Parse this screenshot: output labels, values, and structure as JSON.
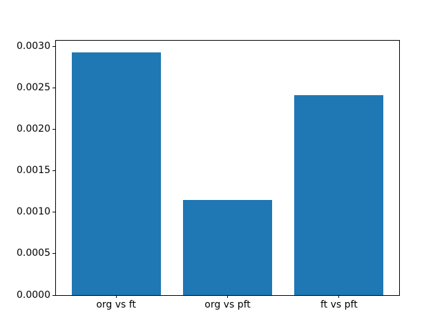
{
  "chart_data": {
    "type": "bar",
    "title": "",
    "xlabel": "",
    "ylabel": "",
    "categories": [
      "org vs ft",
      "org vs pft",
      "ft vs pft"
    ],
    "values": [
      0.00293,
      0.00115,
      0.00241
    ],
    "bar_color": "#1f77b4",
    "ylim": [
      0,
      0.00307
    ],
    "xlim": [
      -0.54,
      2.54
    ],
    "bar_width_units": 0.8,
    "yticks": [
      0.0,
      0.0005,
      0.001,
      0.0015,
      0.002,
      0.0025,
      0.003
    ],
    "ytick_labels": [
      "0.0000",
      "0.0005",
      "0.0010",
      "0.0015",
      "0.0020",
      "0.0025",
      "0.0030"
    ],
    "grid": false,
    "legend": "none"
  }
}
